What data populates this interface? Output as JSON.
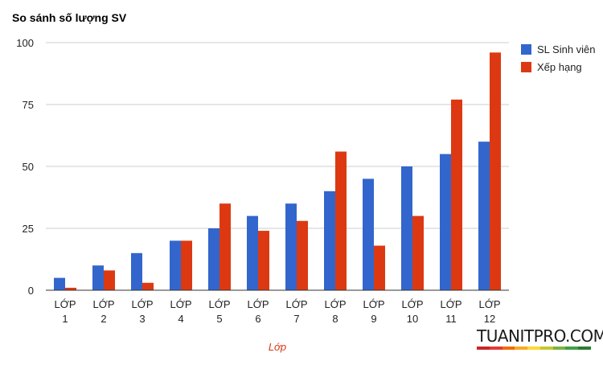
{
  "chart_data": {
    "type": "bar",
    "title": "So sánh số lượng SV",
    "xlabel": "Lớp",
    "ylabel": "",
    "categories": [
      [
        "LỚP",
        "1"
      ],
      [
        "LỚP",
        "2"
      ],
      [
        "LỚP",
        "3"
      ],
      [
        "LỚP",
        "4"
      ],
      [
        "LỚP",
        "5"
      ],
      [
        "LỚP",
        "6"
      ],
      [
        "LỚP",
        "7"
      ],
      [
        "LỚP",
        "8"
      ],
      [
        "LỚP",
        "9"
      ],
      [
        "LỚP",
        "10"
      ],
      [
        "LỚP",
        "11"
      ],
      [
        "LỚP",
        "12"
      ]
    ],
    "series": [
      {
        "name": "SL Sinh viên",
        "color": "#3366cc",
        "values": [
          5,
          10,
          15,
          20,
          25,
          30,
          35,
          40,
          45,
          50,
          55,
          60
        ]
      },
      {
        "name": "Xếp hạng",
        "color": "#dc3912",
        "values": [
          1,
          8,
          3,
          20,
          35,
          24,
          28,
          56,
          18,
          30,
          77,
          96
        ]
      }
    ],
    "ylim": [
      0,
      100
    ],
    "yticks": [
      0,
      25,
      50,
      75,
      100
    ],
    "grid": true,
    "legend_position": "right"
  },
  "watermark": {
    "text": "TUANITPRO.COM",
    "bar_colors": [
      "#c62828",
      "#e53935",
      "#ef6c00",
      "#f9a825",
      "#fdd835",
      "#c0ca33",
      "#7cb342",
      "#43a047",
      "#2e7d32"
    ]
  }
}
